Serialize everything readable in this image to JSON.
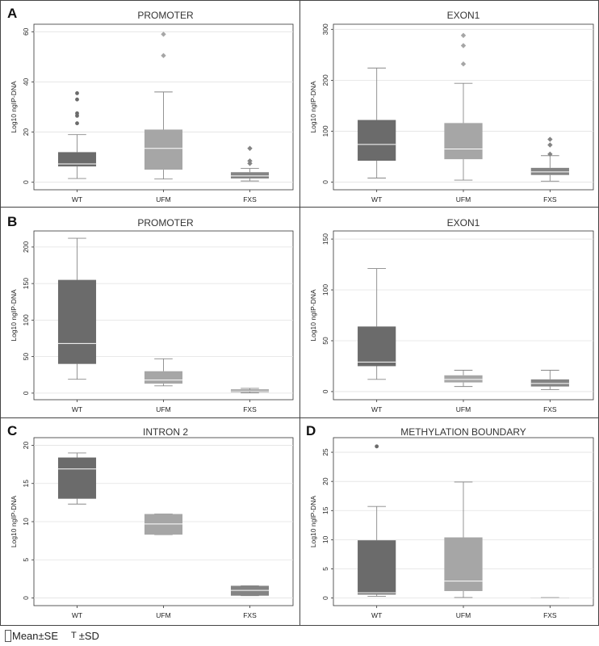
{
  "legend": {
    "box_label": "Mean±SE",
    "whisker_symbol": "T",
    "whisker_label": "±SD"
  },
  "style": {
    "wt_color": "#6b6b6b",
    "ufm_color": "#a6a6a6",
    "fxs_color": "#848484",
    "outlier_color": "#6b6b6b",
    "ufm_outlier_color": "#a6a6a6"
  },
  "chart_data": [
    {
      "panel": "A",
      "title": "PROMOTER",
      "type": "box",
      "categories": [
        "WT",
        "UFM",
        "FXS"
      ],
      "ylabel": "Log10 ngIP-DNA",
      "ylim": [
        -3,
        63
      ],
      "yticks": [
        0,
        20,
        40,
        60
      ],
      "grid": true,
      "boxes": [
        {
          "whisker_low": 1.5,
          "q1": 6.3,
          "median": 7.3,
          "q3": 12,
          "whisker_high": 19,
          "outliers": [
            23.5,
            26.5,
            27.5,
            33,
            35.5
          ]
        },
        {
          "whisker_low": 1.3,
          "q1": 5,
          "median": 13.5,
          "q3": 21,
          "whisker_high": 36,
          "outliers": [
            50.5,
            59
          ]
        },
        {
          "whisker_low": 0.5,
          "q1": 1.5,
          "median": 2.5,
          "q3": 4,
          "whisker_high": 5.5,
          "outliers": [
            7.5,
            8.5,
            13.5
          ]
        }
      ]
    },
    {
      "panel": "",
      "title": "EXON1",
      "type": "box",
      "categories": [
        "WT",
        "UFM",
        "FXS"
      ],
      "ylabel": "Log10 ngIP-DNA",
      "ylim": [
        -15,
        310
      ],
      "yticks": [
        0,
        100,
        200,
        300
      ],
      "grid": true,
      "boxes": [
        {
          "whisker_low": 8,
          "q1": 42,
          "median": 74,
          "q3": 122,
          "whisker_high": 224,
          "outliers": []
        },
        {
          "whisker_low": 4,
          "q1": 45,
          "median": 65,
          "q3": 116,
          "whisker_high": 194,
          "outliers": [
            232,
            268,
            288
          ]
        },
        {
          "whisker_low": 2,
          "q1": 14,
          "median": 20,
          "q3": 28,
          "whisker_high": 52,
          "outliers": [
            55,
            73,
            84
          ]
        }
      ]
    },
    {
      "panel": "B",
      "title": "PROMOTER",
      "type": "box",
      "categories": [
        "WT",
        "UFM",
        "FXS"
      ],
      "ylabel": "Log10 ngIP-DNA",
      "ylim": [
        -9,
        222
      ],
      "yticks": [
        0,
        50,
        100,
        150,
        200
      ],
      "grid": true,
      "boxes": [
        {
          "whisker_low": 19,
          "q1": 40,
          "median": 68,
          "q3": 155,
          "whisker_high": 212,
          "outliers": []
        },
        {
          "whisker_low": 10,
          "q1": 13,
          "median": 18,
          "q3": 30,
          "whisker_high": 47,
          "outliers": []
        },
        {
          "whisker_low": 0.5,
          "q1": 1.5,
          "median": 3,
          "q3": 5,
          "whisker_high": 6.5,
          "outliers": []
        }
      ]
    },
    {
      "panel": "",
      "title": "EXON1",
      "type": "box",
      "categories": [
        "WT",
        "UFM",
        "FXS"
      ],
      "ylabel": "Log10 ngIP-DNA",
      "ylim": [
        -8,
        158
      ],
      "yticks": [
        0,
        50,
        100,
        150
      ],
      "grid": true,
      "boxes": [
        {
          "whisker_low": 12,
          "q1": 25,
          "median": 29,
          "q3": 64,
          "whisker_high": 121,
          "outliers": []
        },
        {
          "whisker_low": 5,
          "q1": 9,
          "median": 12,
          "q3": 16,
          "whisker_high": 21,
          "outliers": []
        },
        {
          "whisker_low": 2,
          "q1": 5,
          "median": 8,
          "q3": 12,
          "whisker_high": 21,
          "outliers": []
        }
      ]
    },
    {
      "panel": "C",
      "title": "INTRON 2",
      "type": "box",
      "categories": [
        "WT",
        "UFM",
        "FXS"
      ],
      "ylabel": "Log10 ngIP-DNA",
      "ylim": [
        -1,
        21
      ],
      "yticks": [
        0,
        5,
        10,
        15,
        20
      ],
      "grid": true,
      "boxes": [
        {
          "whisker_low": 12.3,
          "q1": 13,
          "median": 16.9,
          "q3": 18.4,
          "whisker_high": 19,
          "outliers": []
        },
        {
          "whisker_low": 8.3,
          "q1": 8.3,
          "median": 9.7,
          "q3": 11,
          "whisker_high": 11,
          "outliers": []
        },
        {
          "whisker_low": 0.3,
          "q1": 0.3,
          "median": 1,
          "q3": 1.6,
          "whisker_high": 1.6,
          "outliers": []
        }
      ]
    },
    {
      "panel": "D",
      "title": "METHYLATION BOUNDARY",
      "type": "box",
      "categories": [
        "WT",
        "UFM",
        "FXS"
      ],
      "ylabel": "Log10 ngIP-DNA",
      "ylim": [
        -1.3,
        27.5
      ],
      "yticks": [
        0,
        5,
        10,
        15,
        20,
        25
      ],
      "grid": true,
      "boxes": [
        {
          "whisker_low": 0.3,
          "q1": 0.6,
          "median": 0.9,
          "q3": 9.9,
          "whisker_high": 15.7,
          "outliers": [
            26
          ]
        },
        {
          "whisker_low": 0.1,
          "q1": 1.2,
          "median": 2.9,
          "q3": 10.4,
          "whisker_high": 19.9,
          "outliers": []
        },
        {
          "whisker_low": 0,
          "q1": 0.05,
          "median": 0.08,
          "q3": 0.12,
          "whisker_high": 0.15,
          "outliers": []
        }
      ]
    }
  ]
}
